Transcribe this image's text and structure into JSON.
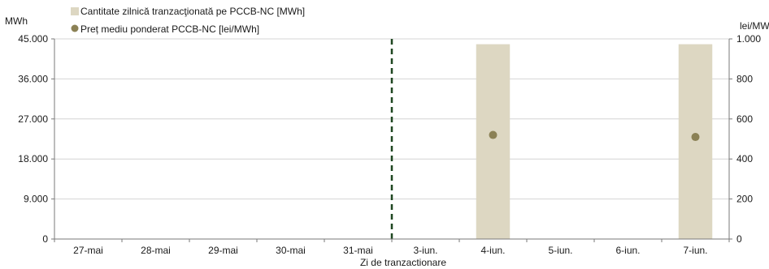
{
  "chart_data": {
    "type": "bar",
    "title": "",
    "xlabel": "Zi de tranzactionare",
    "y_left_unit": "MWh",
    "y_right_unit": "lei/MWh",
    "categories": [
      "27-mai",
      "28-mai",
      "29-mai",
      "30-mai",
      "31-mai",
      "3-iun.",
      "4-iun.",
      "5-iun.",
      "6-iun.",
      "7-iun."
    ],
    "series": [
      {
        "name": "Cantitate zilnică tranzacţionată pe PCCB-NC [MWh]",
        "type": "bar",
        "axis": "left",
        "color": "#ddd7c2",
        "values": [
          0,
          0,
          0,
          0,
          0,
          0,
          43800,
          0,
          0,
          43800
        ]
      },
      {
        "name": "Preț mediu ponderat PCCB-NC [lei/MWh]",
        "type": "scatter",
        "axis": "right",
        "color": "#8b8155",
        "values": [
          null,
          null,
          null,
          null,
          null,
          null,
          520,
          null,
          null,
          510
        ]
      }
    ],
    "y_left": {
      "min": 0,
      "max": 45000,
      "ticks": [
        "0",
        "9.000",
        "18.000",
        "27.000",
        "36.000",
        "45.000"
      ],
      "tick_values": [
        0,
        9000,
        18000,
        27000,
        36000,
        45000
      ]
    },
    "y_right": {
      "min": 0,
      "max": 1000,
      "ticks": [
        "0",
        "200",
        "400",
        "600",
        "800",
        "1.000"
      ],
      "tick_values": [
        0,
        200,
        400,
        600,
        800,
        1000
      ]
    },
    "grid": true,
    "legend_position": "top-left",
    "divider": {
      "after_category": "31-mai",
      "color": "#1e4620",
      "style": "dashed"
    }
  }
}
